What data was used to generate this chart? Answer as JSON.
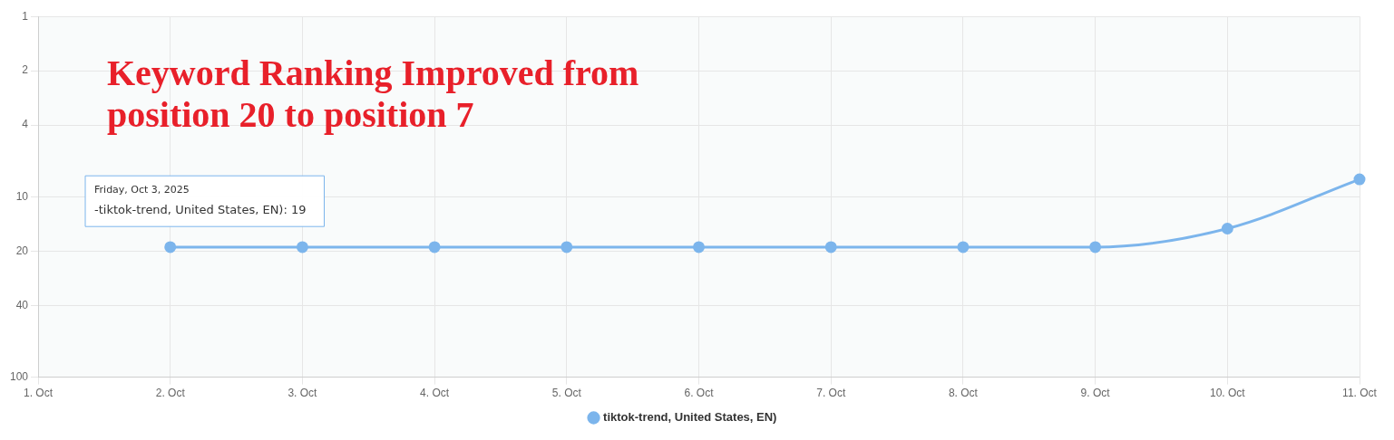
{
  "chart_data": {
    "type": "line",
    "title": "Keyword Ranking Improved from position 20 to position 7",
    "x": [
      "2025-10-02",
      "2025-10-03",
      "2025-10-04",
      "2025-10-05",
      "2025-10-06",
      "2025-10-07",
      "2025-10-08",
      "2025-10-09",
      "2025-10-10",
      "2025-10-11"
    ],
    "series": [
      {
        "name": "tiktok-trend, United States, EN)",
        "color": "#7cb5ec",
        "values": [
          19,
          19,
          19,
          19,
          19,
          19,
          19,
          19,
          15,
          8
        ]
      }
    ],
    "xlim": [
      "2025-10-01",
      "2025-10-11"
    ],
    "xticks": [
      {
        "value": "2025-10-01",
        "label": "1. Oct"
      },
      {
        "value": "2025-10-02",
        "label": "2. Oct"
      },
      {
        "value": "2025-10-03",
        "label": "3. Oct"
      },
      {
        "value": "2025-10-04",
        "label": "4. Oct"
      },
      {
        "value": "2025-10-05",
        "label": "5. Oct"
      },
      {
        "value": "2025-10-06",
        "label": "6. Oct"
      },
      {
        "value": "2025-10-07",
        "label": "7. Oct"
      },
      {
        "value": "2025-10-08",
        "label": "8. Oct"
      },
      {
        "value": "2025-10-09",
        "label": "9. Oct"
      },
      {
        "value": "2025-10-10",
        "label": "10. Oct"
      },
      {
        "value": "2025-10-11",
        "label": "11. Oct"
      }
    ],
    "ylim": [
      100,
      1
    ],
    "yticks": [
      1,
      2,
      4,
      10,
      20,
      40,
      100
    ],
    "log": "y",
    "grid": true,
    "legend": "bottom",
    "marker": "circle",
    "line_style": "solid",
    "annotations": [
      "Friday, Oct 3, 2025",
      "-tiktok-trend, United States, EN): 19"
    ]
  }
}
